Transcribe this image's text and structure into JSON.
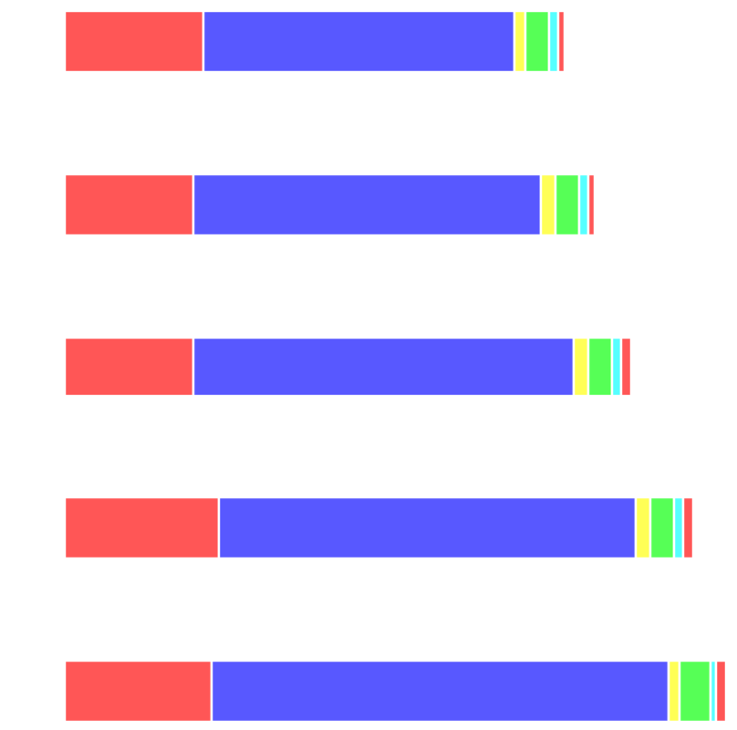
{
  "chart_data": {
    "type": "bar",
    "orientation": "horizontal",
    "stacked": true,
    "title": "",
    "xlabel": "",
    "ylabel": "",
    "grid": false,
    "legend": "none",
    "categories": [
      "",
      "",
      "",
      "",
      ""
    ],
    "series": [
      {
        "color": "#ff5656",
        "values": [
          152,
          141,
          141,
          169,
          161
        ]
      },
      {
        "color": "#5858ff",
        "values": [
          341,
          381,
          417,
          457,
          501
        ]
      },
      {
        "color": "#ffff56",
        "values": [
          12,
          16,
          16,
          16,
          12
        ]
      },
      {
        "color": "#56ff56",
        "values": [
          26,
          26,
          26,
          26,
          34
        ]
      },
      {
        "color": "#56ffff",
        "values": [
          10,
          10,
          10,
          10,
          6
        ]
      },
      {
        "color": "#ff5656",
        "values": [
          7,
          7,
          11,
          11,
          11
        ]
      }
    ],
    "xlim": [
      0,
      740
    ]
  }
}
